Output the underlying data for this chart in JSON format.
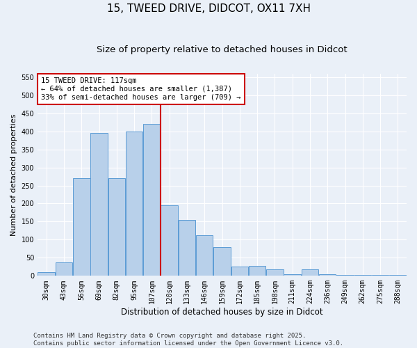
{
  "title": "15, TWEED DRIVE, DIDCOT, OX11 7XH",
  "subtitle": "Size of property relative to detached houses in Didcot",
  "xlabel": "Distribution of detached houses by size in Didcot",
  "ylabel": "Number of detached properties",
  "categories": [
    "30sqm",
    "43sqm",
    "56sqm",
    "69sqm",
    "82sqm",
    "95sqm",
    "107sqm",
    "120sqm",
    "133sqm",
    "146sqm",
    "159sqm",
    "172sqm",
    "185sqm",
    "198sqm",
    "211sqm",
    "224sqm",
    "236sqm",
    "249sqm",
    "262sqm",
    "275sqm",
    "288sqm"
  ],
  "values": [
    10,
    38,
    270,
    395,
    270,
    400,
    420,
    195,
    155,
    112,
    80,
    25,
    28,
    18,
    5,
    18,
    5,
    3,
    3,
    2,
    2
  ],
  "bar_color": "#b8d0ea",
  "bar_edge_color": "#5b9bd5",
  "property_line_x": 7,
  "ylim": [
    0,
    560
  ],
  "yticks": [
    0,
    50,
    100,
    150,
    200,
    250,
    300,
    350,
    400,
    450,
    500,
    550
  ],
  "vline_color": "#cc0000",
  "box_color": "#cc0000",
  "annotation_line1": "15 TWEED DRIVE: 117sqm",
  "annotation_line2": "← 64% of detached houses are smaller (1,387)",
  "annotation_line3": "33% of semi-detached houses are larger (709) →",
  "footer_text": "Contains HM Land Registry data © Crown copyright and database right 2025.\nContains public sector information licensed under the Open Government Licence v3.0.",
  "bg_color": "#eaf0f8",
  "plot_bg_color": "#eaf0f8",
  "title_fontsize": 11,
  "subtitle_fontsize": 9.5,
  "ylabel_fontsize": 8,
  "xlabel_fontsize": 8.5,
  "tick_fontsize": 7,
  "footer_fontsize": 6.5,
  "ann_fontsize": 7.5
}
